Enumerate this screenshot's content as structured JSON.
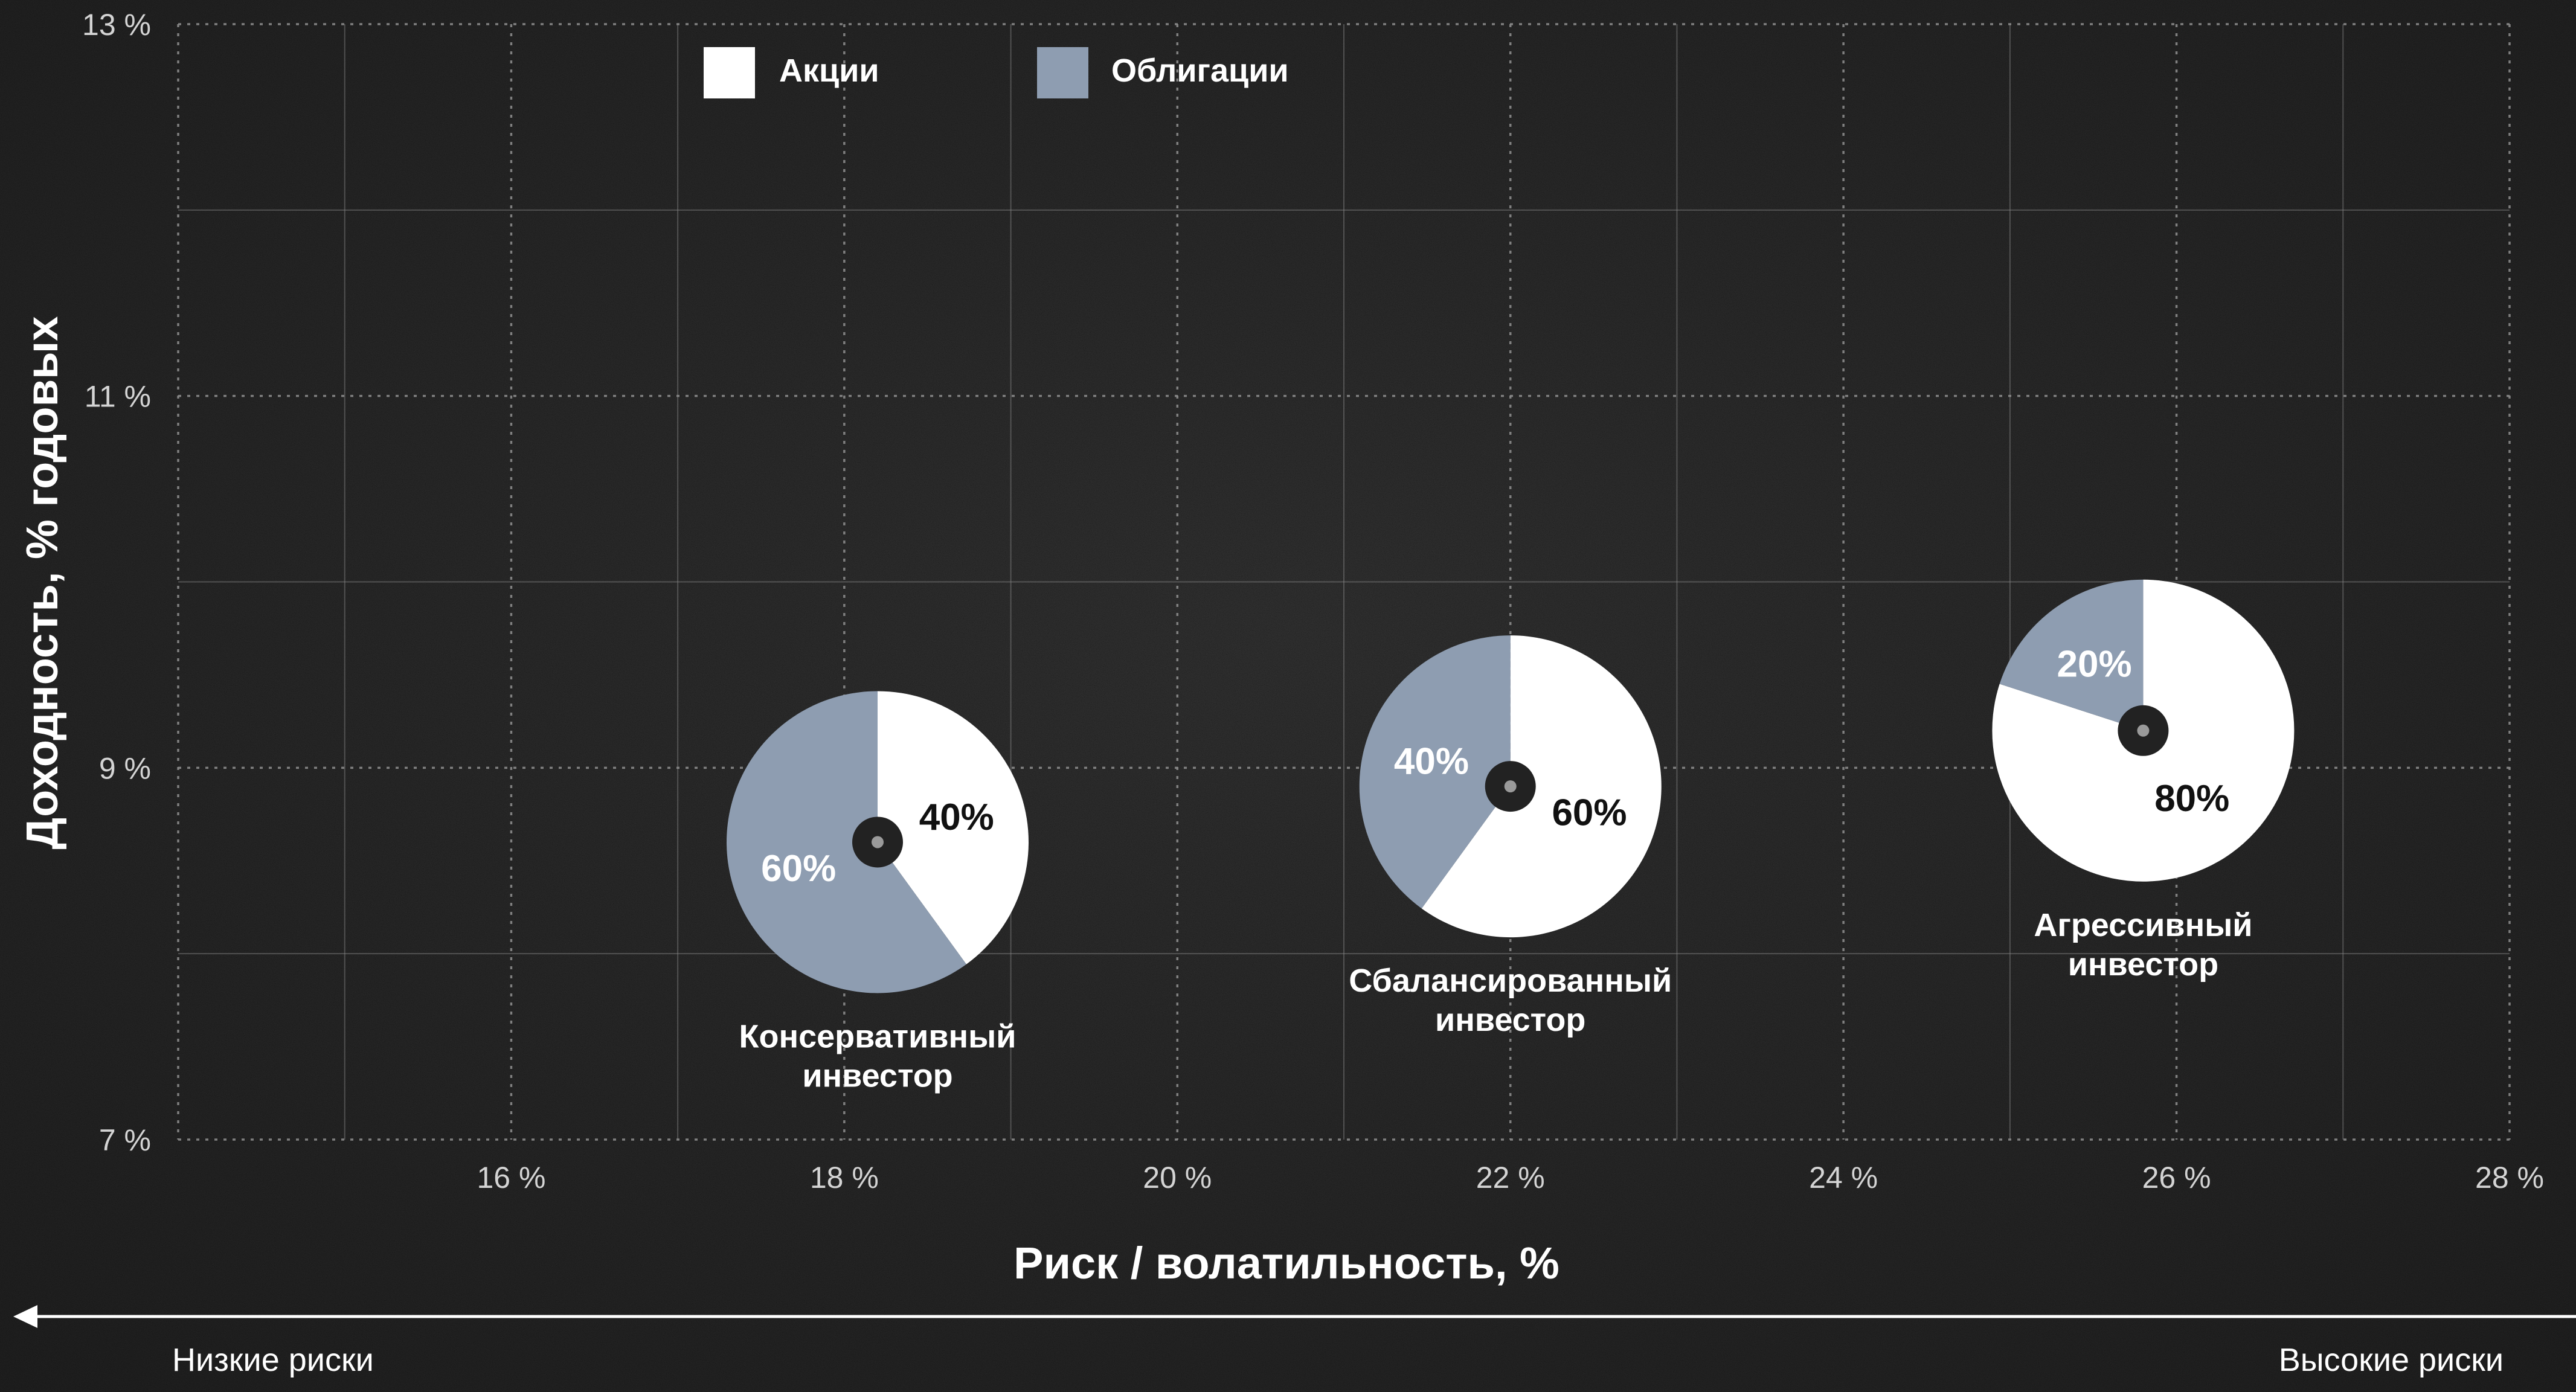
{
  "chart_data": {
    "type": "scatter",
    "subtype": "pie-markers",
    "title": "",
    "xlabel": "Риск / волатильность, %",
    "ylabel": "Доходность, % годовых",
    "xlim": [
      14,
      28
    ],
    "ylim": [
      7,
      13
    ],
    "x_ticks": [
      16,
      18,
      20,
      22,
      24,
      26,
      28
    ],
    "x_tick_labels": [
      "16 %",
      "18 %",
      "20 %",
      "22 %",
      "24 %",
      "26 %",
      "28 %"
    ],
    "y_ticks": [
      7,
      9,
      11,
      13
    ],
    "y_tick_labels": [
      "7 %",
      "9 %",
      "11 %",
      "13 %"
    ],
    "grid": true,
    "grid_step_x": 1,
    "grid_step_y": 1,
    "legend": {
      "placement": "top-left",
      "items": [
        {
          "label": "Акции",
          "color": "#ffffff"
        },
        {
          "label": "Облигации",
          "color": "#8e9db1"
        }
      ]
    },
    "colors": {
      "background": "#262626",
      "stocks": "#ffffff",
      "bonds": "#8e9db1",
      "grid": "#8a8a8a",
      "text": "#ffffff",
      "tick_text": "#d4d4d4",
      "pie_label_on_stocks": "#111111",
      "pie_label_on_bonds": "#ffffff"
    },
    "points": [
      {
        "name": "Консервативный инвестор",
        "label_lines": [
          "Консервативный",
          "инвестор"
        ],
        "x": 18.2,
        "y": 8.6,
        "stocks": 40,
        "bonds": 60,
        "stocks_label": "40%",
        "bonds_label": "60%"
      },
      {
        "name": "Сбалансированный инвестор",
        "label_lines": [
          "Сбалансированный",
          "инвестор"
        ],
        "x": 22.0,
        "y": 8.9,
        "stocks": 60,
        "bonds": 40,
        "stocks_label": "60%",
        "bonds_label": "40%"
      },
      {
        "name": "Агрессивный инвестор",
        "label_lines": [
          "Агрессивный",
          "инвестор"
        ],
        "x": 25.8,
        "y": 9.2,
        "stocks": 80,
        "bonds": 20,
        "stocks_label": "80%",
        "bonds_label": "20%"
      }
    ],
    "risk_scale": {
      "left_label": "Низкие риски",
      "right_label": "Высокие риски",
      "arrow_direction": "left"
    }
  }
}
